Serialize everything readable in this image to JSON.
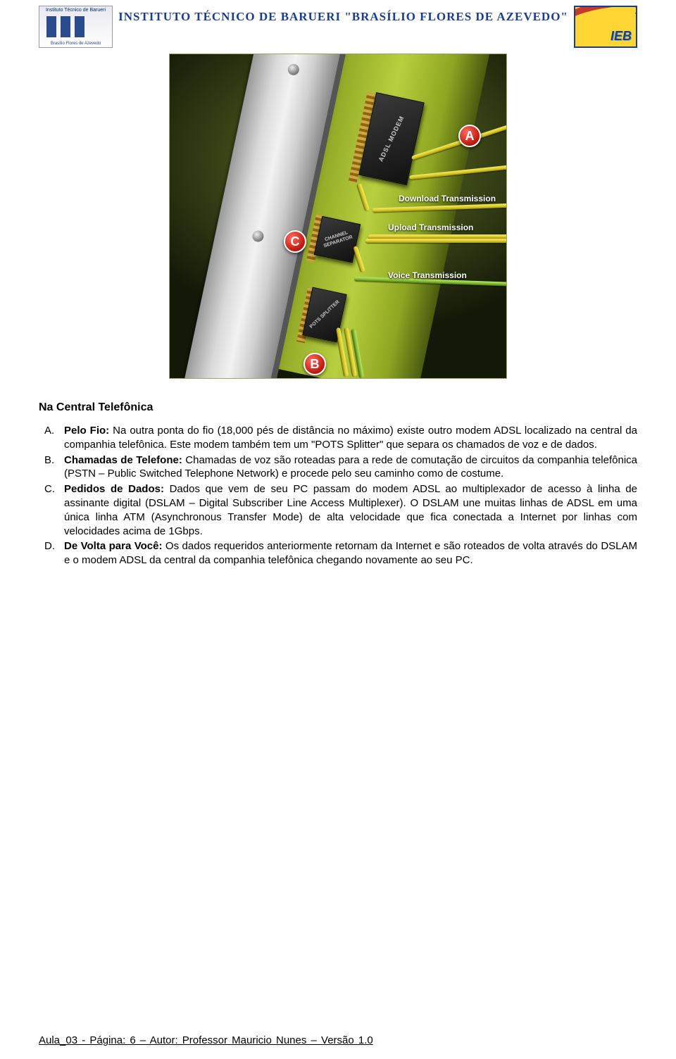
{
  "header": {
    "title": "INSTITUTO TÉCNICO DE BARUERI \"BRASÍLIO FLORES DE AZEVEDO\"",
    "logo_left_top": "Instituto Técnico de Barueri",
    "logo_left_bottom": "Brasílio Flores de Azevedo",
    "logo_right_text": "IEB"
  },
  "diagram": {
    "chip_modem": "ADSL MODEM",
    "chip_separator": "CHANNEL SEPARATOR",
    "chip_pots": "POTS SPLITTER",
    "marker_a": "A",
    "marker_b": "B",
    "marker_c": "C",
    "label_download": "Download Transmission",
    "label_upload": "Upload Transmission",
    "label_voice": "Voice Transmission"
  },
  "section_title": "Na Central Telefônica",
  "items": [
    {
      "letter": "A.",
      "bold": "Pelo Fio:",
      "text": " Na outra ponta do fio (18,000 pés de distância no máximo) existe outro modem ADSL localizado na central da companhia telefônica. Este modem também tem um \"POTS Splitter\" que separa os chamados de voz e de dados."
    },
    {
      "letter": "B.",
      "bold": "Chamadas de Telefone:",
      "text": " Chamadas de voz são roteadas para a rede de comutação de circuitos da companhia telefônica (PSTN – Public Switched Telephone Network) e procede pelo seu caminho como de costume."
    },
    {
      "letter": "C.",
      "bold": "Pedidos de Dados:",
      "text": " Dados que vem de seu PC passam do modem ADSL ao multiplexador de acesso à linha de assinante digital (DSLAM – Digital Subscriber Line Access Multiplexer). O DSLAM une muitas linhas de ADSL em uma única linha ATM (Asynchronous Transfer Mode) de alta velocidade que fica conectada a Internet por linhas com velocidades acima de 1Gbps."
    },
    {
      "letter": "D.",
      "bold": "De Volta para Você:",
      "text": " Os dados requeridos anteriormente retornam da Internet e são roteados de volta através do DSLAM e o modem ADSL da central da companhia telefônica chegando novamente ao seu PC."
    }
  ],
  "footer": "Aula_03  - Página: 6 – Autor:  Professor  Mauricio Nunes – Versão 1.0"
}
